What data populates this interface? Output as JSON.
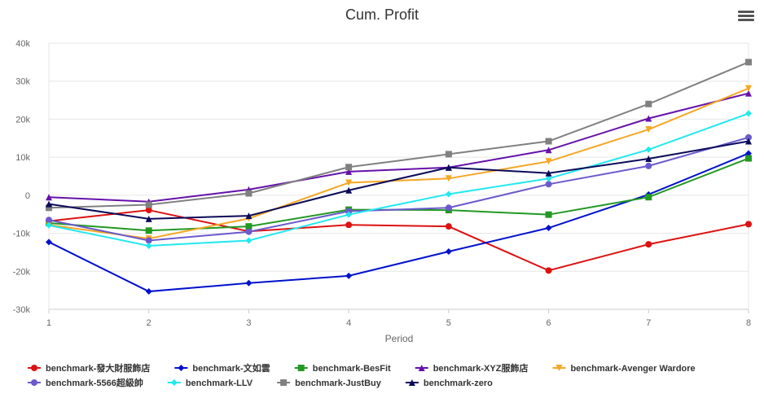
{
  "title": "Cum. Profit",
  "menu_icon": "hamburger-menu-icon",
  "chart_data": {
    "type": "line",
    "title": "Cum. Profit",
    "xlabel": "Period",
    "ylabel": "",
    "x": [
      1,
      2,
      3,
      4,
      5,
      6,
      7,
      8
    ],
    "ylim": [
      -30000,
      40000
    ],
    "yticks": [
      -30000,
      -20000,
      -10000,
      0,
      10000,
      20000,
      30000,
      40000
    ],
    "ytick_labels": [
      "-30k",
      "-20k",
      "-10k",
      "0",
      "10k",
      "20k",
      "30k",
      "40k"
    ],
    "grid": true,
    "legend_position": "bottom",
    "series": [
      {
        "name": "benchmark-發大財服飾店",
        "color": "#dd1111",
        "marker": "circle",
        "values": [
          -6800,
          -3900,
          -9500,
          -7800,
          -8200,
          -19800,
          -12900,
          -7600
        ]
      },
      {
        "name": "benchmark-文如雲",
        "color": "#0011cc",
        "marker": "diamond",
        "values": [
          -12300,
          -25300,
          -23100,
          -21200,
          -14800,
          -8600,
          200,
          11000
        ]
      },
      {
        "name": "benchmark-BesFit",
        "color": "#229922",
        "marker": "square",
        "values": [
          -7300,
          -9300,
          -8200,
          -3800,
          -3900,
          -5100,
          -500,
          9700
        ]
      },
      {
        "name": "benchmark-XYZ服飾店",
        "color": "#6611aa",
        "marker": "triangle",
        "values": [
          -500,
          -1700,
          1500,
          6200,
          7300,
          11900,
          20200,
          26800
        ]
      },
      {
        "name": "benchmark-Avenger Wardore",
        "color": "#f5a623",
        "marker": "triangle-down",
        "values": [
          -7800,
          -11400,
          -6100,
          3300,
          4400,
          8900,
          17300,
          28100
        ]
      },
      {
        "name": "benchmark-5566超級帥",
        "color": "#6a5acd",
        "marker": "circle",
        "values": [
          -6500,
          -11900,
          -9600,
          -4200,
          -3300,
          2900,
          7700,
          15200
        ]
      },
      {
        "name": "benchmark-LLV",
        "color": "#22e8f0",
        "marker": "diamond",
        "values": [
          -7900,
          -13300,
          -11900,
          -5100,
          300,
          4400,
          12000,
          21500
        ]
      },
      {
        "name": "benchmark-JustBuy",
        "color": "#808080",
        "marker": "square",
        "values": [
          -3300,
          -2500,
          500,
          7400,
          10800,
          14200,
          24000,
          35000
        ]
      },
      {
        "name": "benchmark-zero",
        "color": "#0a0a5a",
        "marker": "triangle",
        "values": [
          -2300,
          -6200,
          -5400,
          1300,
          7300,
          5800,
          9600,
          14200
        ]
      }
    ]
  }
}
